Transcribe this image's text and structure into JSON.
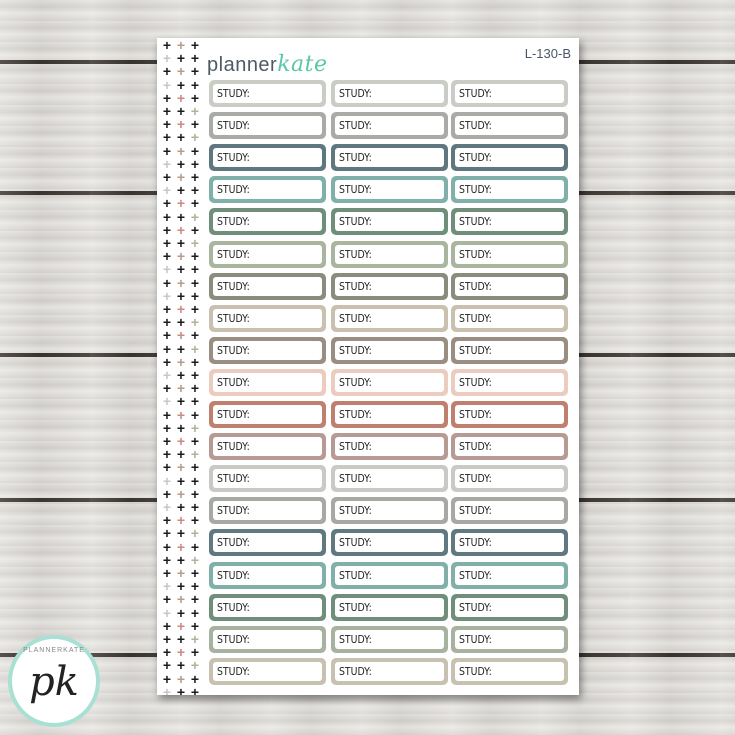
{
  "sheet": {
    "brand_prefix": "planner",
    "brand_script": "kate",
    "product_code": "L-130-B",
    "label_text": "STUDY:"
  },
  "logo": {
    "monogram": "pk",
    "ring_text": "PLANNERKATE"
  },
  "row_colors": [
    "#c9cdc6",
    "#a9aba6",
    "#5f7880",
    "#7fb0aa",
    "#6f8f7b",
    "#aab59f",
    "#8a8c7e",
    "#c9c0b0",
    "#9a8e82",
    "#ecccbf",
    "#c08070",
    "#b89a95",
    "#c9cac6",
    "#a7a9a5",
    "#607880",
    "#80b0a9",
    "#6f8f7b",
    "#a8b2a0",
    "#c8c0b0"
  ],
  "plus_colors": [
    "#1c1c1c",
    "#c98d80",
    "#a9b59c",
    "#6f9e8e",
    "#c8c8c2",
    "#b79c8c",
    "#1c1c1c",
    "#1c1c1c"
  ]
}
